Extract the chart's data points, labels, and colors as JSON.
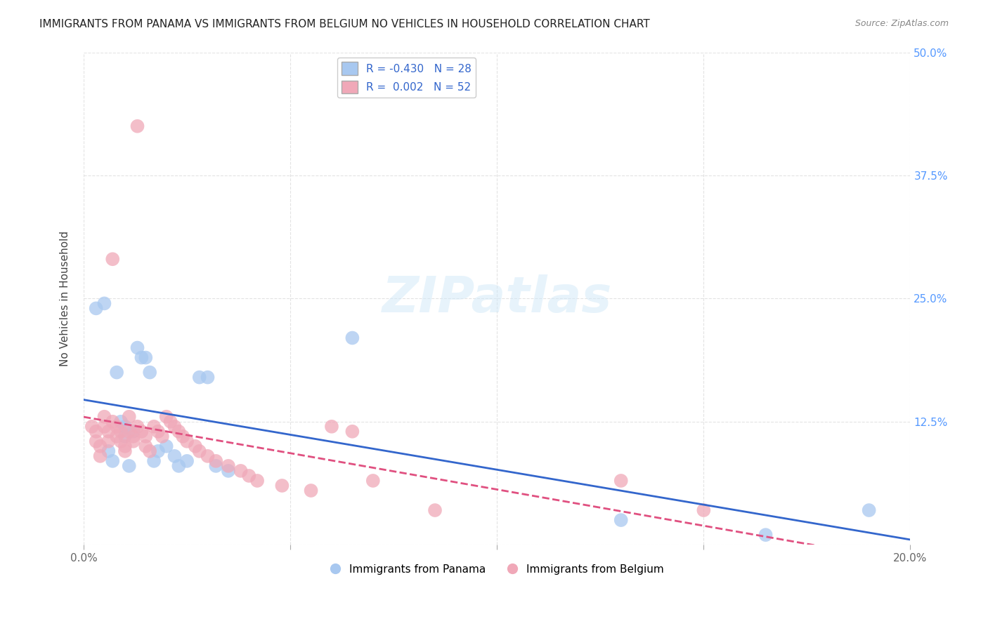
{
  "title": "IMMIGRANTS FROM PANAMA VS IMMIGRANTS FROM BELGIUM NO VEHICLES IN HOUSEHOLD CORRELATION CHART",
  "source": "Source: ZipAtlas.com",
  "ylabel": "No Vehicles in Household",
  "xmin": 0.0,
  "xmax": 0.2,
  "ymin": 0.0,
  "ymax": 0.5,
  "legend_r_panama": "-0.430",
  "legend_n_panama": "28",
  "legend_r_belgium": " 0.002",
  "legend_n_belgium": "52",
  "panama_color": "#a8c8f0",
  "belgium_color": "#f0a8b8",
  "trend_panama_color": "#3366cc",
  "trend_belgium_color": "#e05080",
  "panama_x": [
    0.003,
    0.005,
    0.006,
    0.007,
    0.008,
    0.009,
    0.01,
    0.01,
    0.011,
    0.012,
    0.013,
    0.014,
    0.015,
    0.016,
    0.017,
    0.018,
    0.02,
    0.022,
    0.023,
    0.025,
    0.028,
    0.03,
    0.032,
    0.035,
    0.065,
    0.13,
    0.165,
    0.19
  ],
  "panama_y": [
    0.24,
    0.245,
    0.095,
    0.085,
    0.175,
    0.125,
    0.12,
    0.11,
    0.08,
    0.115,
    0.2,
    0.19,
    0.19,
    0.175,
    0.085,
    0.095,
    0.1,
    0.09,
    0.08,
    0.085,
    0.17,
    0.17,
    0.08,
    0.075,
    0.21,
    0.025,
    0.01,
    0.035
  ],
  "belgium_x": [
    0.002,
    0.003,
    0.003,
    0.004,
    0.004,
    0.005,
    0.005,
    0.006,
    0.006,
    0.007,
    0.007,
    0.008,
    0.008,
    0.009,
    0.009,
    0.01,
    0.01,
    0.011,
    0.011,
    0.012,
    0.012,
    0.013,
    0.013,
    0.014,
    0.015,
    0.015,
    0.016,
    0.017,
    0.018,
    0.019,
    0.02,
    0.021,
    0.022,
    0.023,
    0.024,
    0.025,
    0.027,
    0.028,
    0.03,
    0.032,
    0.035,
    0.038,
    0.04,
    0.042,
    0.048,
    0.055,
    0.06,
    0.065,
    0.07,
    0.085,
    0.13,
    0.15
  ],
  "belgium_y": [
    0.12,
    0.115,
    0.105,
    0.1,
    0.09,
    0.13,
    0.12,
    0.115,
    0.105,
    0.29,
    0.125,
    0.12,
    0.11,
    0.115,
    0.105,
    0.1,
    0.095,
    0.13,
    0.115,
    0.11,
    0.105,
    0.425,
    0.12,
    0.115,
    0.11,
    0.1,
    0.095,
    0.12,
    0.115,
    0.11,
    0.13,
    0.125,
    0.12,
    0.115,
    0.11,
    0.105,
    0.1,
    0.095,
    0.09,
    0.085,
    0.08,
    0.075,
    0.07,
    0.065,
    0.06,
    0.055,
    0.12,
    0.115,
    0.065,
    0.035,
    0.065,
    0.035
  ],
  "watermark": "ZIPatlas",
  "grid_color": "#dddddd",
  "background_color": "#ffffff"
}
